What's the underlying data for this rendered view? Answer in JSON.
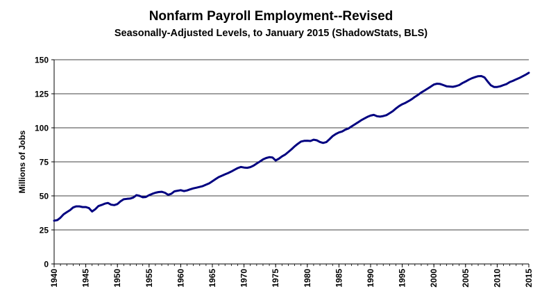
{
  "chart_data": {
    "type": "line",
    "title": "Nonfarm Payroll Employment--Revised",
    "subtitle": "Seasonally-Adjusted Levels, to January 2015 (ShadowStats, BLS)",
    "xlabel": "",
    "ylabel": "Millions  of Jobs",
    "xlim": [
      1940,
      2015
    ],
    "ylim": [
      0,
      150
    ],
    "y_ticks": [
      0,
      25,
      50,
      75,
      100,
      125,
      150
    ],
    "x_ticks": [
      1940,
      1945,
      1950,
      1955,
      1960,
      1965,
      1970,
      1975,
      1980,
      1985,
      1990,
      1995,
      2000,
      2005,
      2010,
      2015
    ],
    "grid": "horizontal",
    "line_color": "#000080",
    "series": [
      {
        "x": [
          1940,
          1940.5,
          1941,
          1941.5,
          1942,
          1942.5,
          1943,
          1943.5,
          1944,
          1944.5,
          1945,
          1945.5,
          1946,
          1946.5,
          1947,
          1947.5,
          1948,
          1948.5,
          1949,
          1949.5,
          1950,
          1950.5,
          1951,
          1951.5,
          1952,
          1952.5,
          1953,
          1953.5,
          1954,
          1954.5,
          1955,
          1955.5,
          1956,
          1956.5,
          1957,
          1957.5,
          1958,
          1958.5,
          1959,
          1959.5,
          1960,
          1960.5,
          1961,
          1961.5,
          1962,
          1962.5,
          1963,
          1963.5,
          1964,
          1964.5,
          1965,
          1965.5,
          1966,
          1966.5,
          1967,
          1967.5,
          1968,
          1968.5,
          1969,
          1969.5,
          1970,
          1970.5,
          1971,
          1971.5,
          1972,
          1972.5,
          1973,
          1973.5,
          1974,
          1974.5,
          1975,
          1975.5,
          1976,
          1976.5,
          1977,
          1977.5,
          1978,
          1978.5,
          1979,
          1979.5,
          1980,
          1980.5,
          1981,
          1981.5,
          1982,
          1982.5,
          1983,
          1983.5,
          1984,
          1984.5,
          1985,
          1985.5,
          1986,
          1986.5,
          1987,
          1987.5,
          1988,
          1988.5,
          1989,
          1989.5,
          1990,
          1990.5,
          1991,
          1991.5,
          1992,
          1992.5,
          1993,
          1993.5,
          1994,
          1994.5,
          1995,
          1995.5,
          1996,
          1996.5,
          1997,
          1997.5,
          1998,
          1998.5,
          1999,
          1999.5,
          2000,
          2000.5,
          2001,
          2001.5,
          2002,
          2002.5,
          2003,
          2003.5,
          2004,
          2004.5,
          2005,
          2005.5,
          2006,
          2006.5,
          2007,
          2007.5,
          2008,
          2008.5,
          2009,
          2009.5,
          2010,
          2010.5,
          2011,
          2011.5,
          2012,
          2012.5,
          2013,
          2013.5,
          2014,
          2014.5,
          2015
        ],
        "y": [
          31.8,
          32.2,
          34.0,
          36.5,
          38.0,
          39.5,
          41.5,
          42.3,
          42.3,
          41.8,
          41.8,
          41.0,
          38.5,
          40.2,
          42.5,
          43.3,
          44.3,
          44.8,
          43.5,
          43.2,
          44.0,
          46.0,
          47.5,
          47.8,
          48.0,
          48.8,
          50.5,
          50.0,
          49.0,
          49.2,
          50.5,
          51.5,
          52.3,
          52.8,
          53.0,
          52.3,
          50.8,
          51.5,
          53.3,
          53.8,
          54.2,
          53.5,
          54.0,
          54.8,
          55.5,
          56.0,
          56.6,
          57.2,
          58.2,
          59.2,
          60.7,
          62.3,
          63.8,
          64.8,
          65.8,
          66.8,
          67.9,
          69.2,
          70.4,
          71.2,
          70.8,
          70.6,
          71.1,
          72.2,
          73.7,
          75.2,
          76.8,
          77.8,
          78.4,
          78.2,
          76.0,
          77.3,
          79.0,
          80.3,
          82.2,
          84.2,
          86.4,
          88.2,
          89.9,
          90.4,
          90.5,
          90.3,
          91.3,
          90.8,
          89.6,
          88.9,
          89.5,
          91.6,
          93.9,
          95.4,
          96.6,
          97.3,
          98.6,
          99.5,
          101.0,
          102.5,
          104.0,
          105.5,
          106.8,
          108.0,
          109.0,
          109.5,
          108.5,
          108.2,
          108.6,
          109.3,
          110.7,
          112.2,
          114.2,
          115.9,
          117.3,
          118.3,
          119.6,
          121.0,
          122.7,
          124.2,
          125.9,
          127.3,
          128.8,
          130.2,
          131.8,
          132.4,
          132.2,
          131.4,
          130.5,
          130.3,
          130.1,
          130.6,
          131.4,
          132.8,
          134.0,
          135.3,
          136.4,
          137.2,
          137.9,
          138.0,
          137.0,
          134.0,
          131.2,
          130.0,
          130.0,
          130.5,
          131.4,
          132.2,
          133.6,
          134.5,
          135.6,
          136.6,
          137.8,
          139.0,
          140.4
        ]
      }
    ]
  }
}
